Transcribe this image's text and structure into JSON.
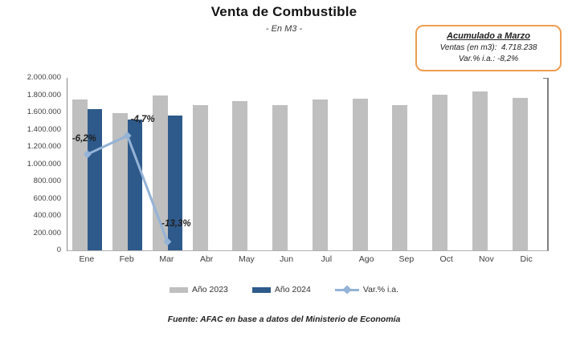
{
  "chart_data": {
    "type": "bar",
    "title": "Venta de Combustible",
    "subtitle": "- En M3 -",
    "categories": [
      "Ene",
      "Feb",
      "Mar",
      "Abr",
      "May",
      "Jun",
      "Jul",
      "Ago",
      "Sep",
      "Oct",
      "Nov",
      "Dic"
    ],
    "series": [
      {
        "name": "Año 2023",
        "type": "bar",
        "axis": "primary",
        "color": "#BFBFBF",
        "values": [
          1745000,
          1595000,
          1800000,
          1685000,
          1730000,
          1680000,
          1745000,
          1760000,
          1685000,
          1805000,
          1840000,
          1765000
        ]
      },
      {
        "name": "Año 2024",
        "type": "bar",
        "axis": "primary",
        "color": "#2E5A8B",
        "values": [
          1640000,
          1520000,
          1560000,
          null,
          null,
          null,
          null,
          null,
          null,
          null,
          null,
          null
        ]
      },
      {
        "name": "Var.% i.a.",
        "type": "line",
        "axis": "secondary",
        "color": "#95B3D7",
        "values": [
          -6.2,
          -4.7,
          -13.3,
          null,
          null,
          null,
          null,
          null,
          null,
          null,
          null,
          null
        ],
        "data_labels": [
          "-6,2%",
          "-4,7%",
          "-13,3%"
        ]
      }
    ],
    "primary_axis": {
      "ylim": [
        0,
        2000000
      ],
      "tick_labels": [
        "2.000.000",
        "1.800.000",
        "1.600.000",
        "1.400.000",
        "1.200.000",
        "1.000.000",
        "800.000",
        "600.000",
        "400.000",
        "200.000",
        "0"
      ]
    },
    "secondary_axis": {
      "ylim": [
        -14,
        0
      ],
      "visible": false
    },
    "grid": false,
    "legend_position": "bottom"
  },
  "callout": {
    "title": "Acumulado a Marzo",
    "lines": [
      "Ventas (en m3):  4.718.238",
      "Var.% i.a.: -8,2%"
    ]
  },
  "footer": {
    "source": "Fuente: AFAC en base a datos del Ministerio de Economía"
  }
}
